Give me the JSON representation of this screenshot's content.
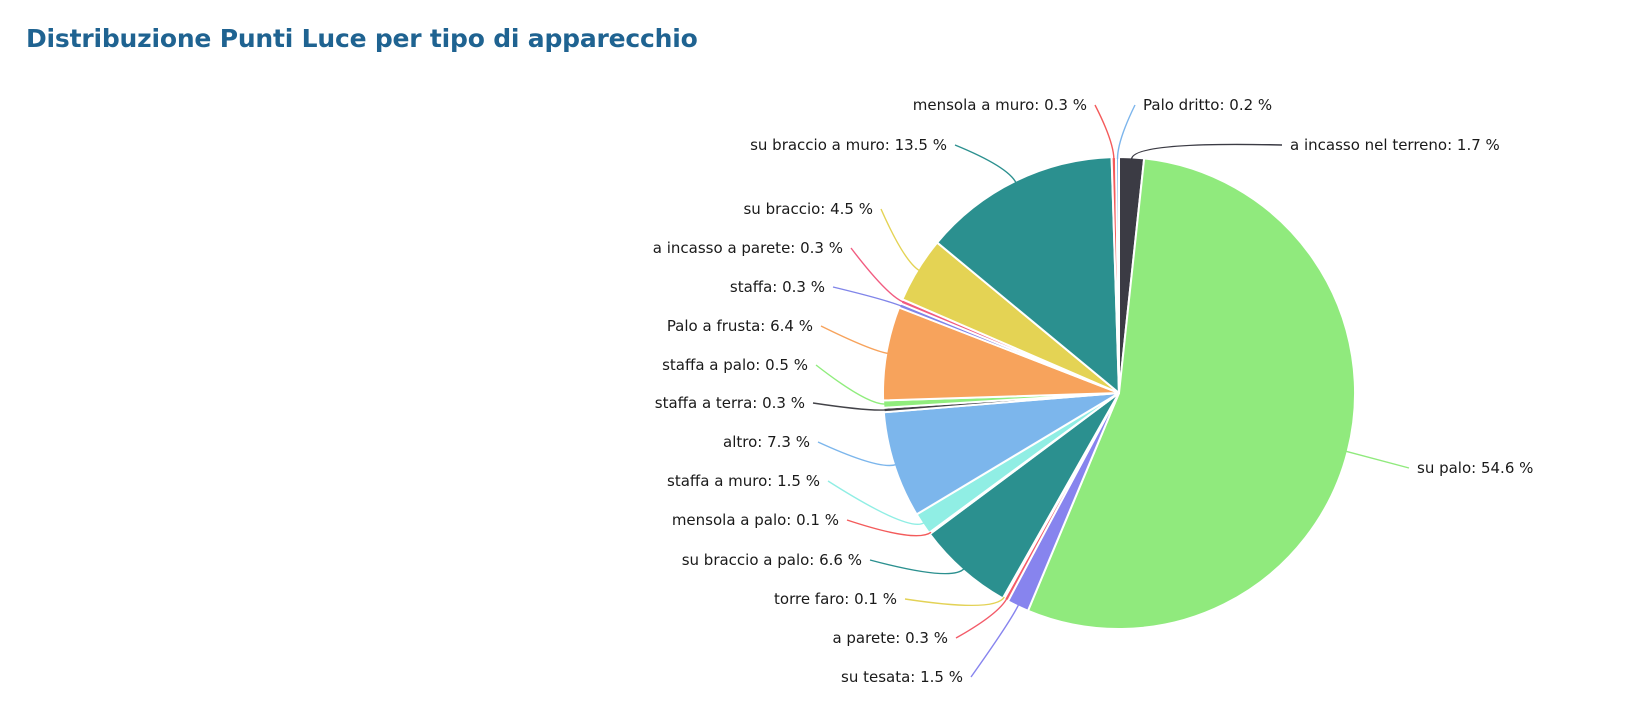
{
  "header": {
    "title": "Distribuzione Punti Luce per tipo di apparecchio"
  },
  "chart_data": {
    "type": "pie",
    "title": "Distribuzione Punti Luce per tipo di apparecchio",
    "start_direction": "clockwise from top",
    "value_suffix": " %",
    "slices": [
      {
        "label": "a incasso nel terreno",
        "value": 1.7,
        "color": "#3b3b44"
      },
      {
        "label": "su palo",
        "value": 54.6,
        "color": "#90ea7d"
      },
      {
        "label": "su tesata",
        "value": 1.5,
        "color": "#8784ee"
      },
      {
        "label": "a parete",
        "value": 0.3,
        "color": "#f35b69"
      },
      {
        "label": "torre faro",
        "value": 0.1,
        "color": "#e3d256"
      },
      {
        "label": "su braccio a palo",
        "value": 6.6,
        "color": "#2b908f"
      },
      {
        "label": "mensola a palo",
        "value": 0.1,
        "color": "#f35b5b"
      },
      {
        "label": "staffa a muro",
        "value": 1.5,
        "color": "#90eee4"
      },
      {
        "label": "altro",
        "value": 7.3,
        "color": "#7cb6ec"
      },
      {
        "label": "staffa a terra",
        "value": 0.3,
        "color": "#434348"
      },
      {
        "label": "staffa a palo",
        "value": 0.5,
        "color": "#90ed7d"
      },
      {
        "label": "Palo a frusta",
        "value": 6.4,
        "color": "#f7a35c"
      },
      {
        "label": "staffa",
        "value": 0.3,
        "color": "#8085e9"
      },
      {
        "label": "a incasso a parete",
        "value": 0.3,
        "color": "#f15c80"
      },
      {
        "label": "su braccio",
        "value": 4.5,
        "color": "#e4d354"
      },
      {
        "label": "su braccio a muro",
        "value": 13.5,
        "color": "#2b908f"
      },
      {
        "label": "mensola a muro",
        "value": 0.3,
        "color": "#f45b5b"
      },
      {
        "label": "Palo dritto",
        "value": 0.2,
        "color": "#7cb5ec"
      }
    ]
  }
}
